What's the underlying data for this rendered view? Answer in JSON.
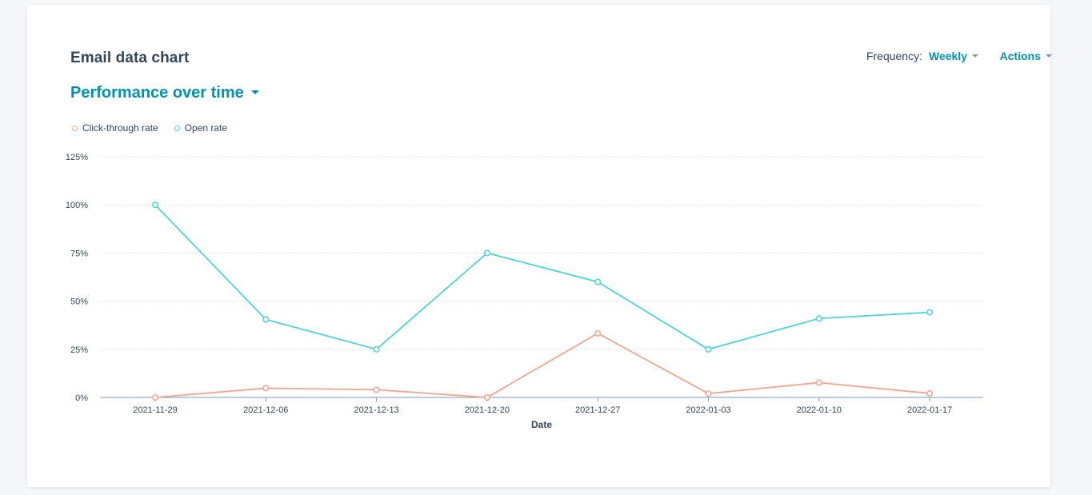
{
  "header": {
    "title": "Email data chart",
    "report_selector": "Performance over time",
    "frequency_label": "Frequency:",
    "frequency_value": "Weekly",
    "actions_label": "Actions"
  },
  "colors": {
    "accent": "#0091ae",
    "click_through": "#f2a58e",
    "open_rate": "#51d3d9",
    "grid": "#dfe3eb",
    "axis": "#7c98b6"
  },
  "chart_data": {
    "type": "line",
    "x": [
      "2021-11-29",
      "2021-12-06",
      "2021-12-13",
      "2021-12-20",
      "2021-12-27",
      "2022-01-03",
      "2022-01-10",
      "2022-01-17"
    ],
    "series": [
      {
        "name": "Click-through rate",
        "color": "#f2a58e",
        "values": [
          0,
          4.8,
          4,
          0,
          33.3,
          2,
          7.7,
          2.1
        ]
      },
      {
        "name": "Open rate",
        "color": "#51d3d9",
        "values": [
          100,
          40.5,
          25,
          75,
          60,
          25,
          41,
          44.2
        ]
      }
    ],
    "xlabel": "Date",
    "ylabel": "",
    "ylim": [
      0,
      125
    ],
    "yticks": [
      0,
      25,
      50,
      75,
      100,
      125
    ],
    "ytick_labels": [
      "0%",
      "25%",
      "50%",
      "75%",
      "100%",
      "125%"
    ],
    "grid": true,
    "legend": "top-left"
  }
}
